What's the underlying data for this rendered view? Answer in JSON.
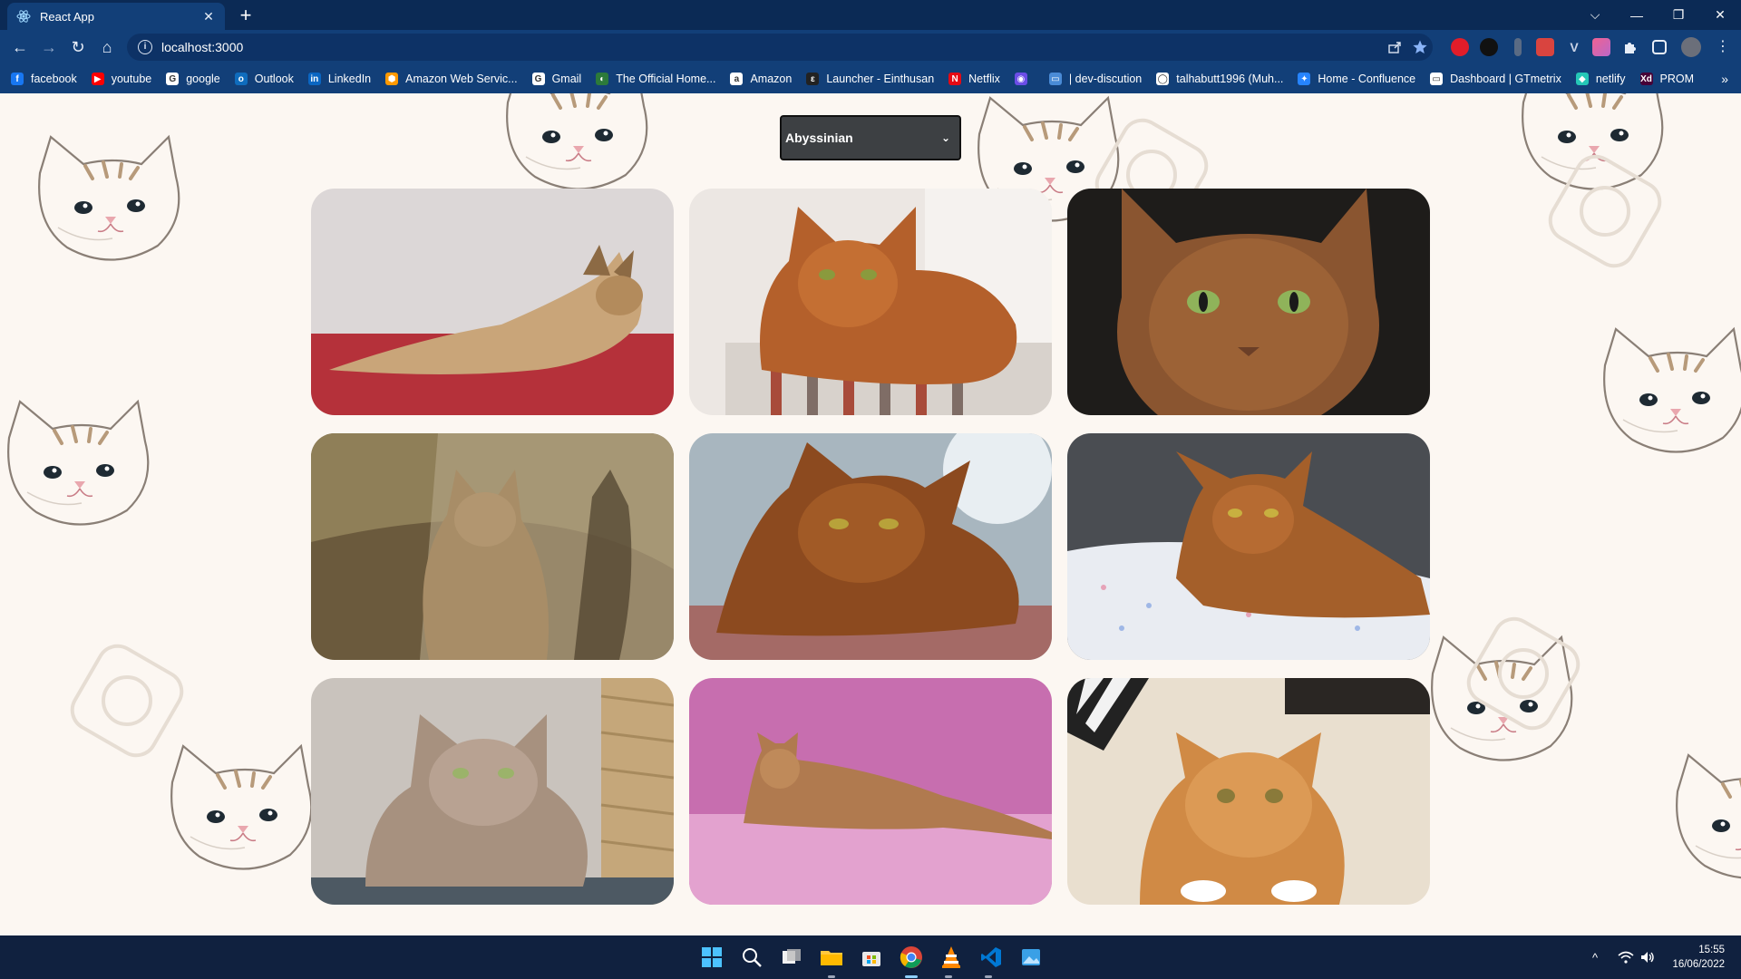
{
  "browser": {
    "tab": {
      "title": "React App",
      "favicon": "react-icon",
      "close_glyph": "✕"
    },
    "new_tab_glyph": "+",
    "window_controls": {
      "list": "⌵",
      "minimize": "—",
      "restore": "❐",
      "close": "✕"
    },
    "toolbar": {
      "back": "←",
      "forward": "→",
      "reload": "↻",
      "home": "⌂",
      "url": "localhost:3000",
      "info_glyph": "i"
    },
    "bookmarks": [
      {
        "label": "facebook",
        "color": "#1877f2",
        "glyph": "f"
      },
      {
        "label": "youtube",
        "color": "#ff0000",
        "glyph": "▶"
      },
      {
        "label": "google",
        "color": "#ffffff",
        "glyph": "G"
      },
      {
        "label": "Outlook",
        "color": "#0f6cbd",
        "glyph": "o"
      },
      {
        "label": "LinkedIn",
        "color": "#0a66c2",
        "glyph": "in"
      },
      {
        "label": "Amazon Web Servic...",
        "color": "#ff9900",
        "glyph": "⬢"
      },
      {
        "label": "Gmail",
        "color": "#ffffff",
        "glyph": "G"
      },
      {
        "label": "The Official Home...",
        "color": "#2c7a3a",
        "glyph": "◐"
      },
      {
        "label": "Amazon",
        "color": "#ffffff",
        "glyph": "a"
      },
      {
        "label": "Launcher - Einthusan",
        "color": "#222222",
        "glyph": "ε"
      },
      {
        "label": "Netflix",
        "color": "#e50914",
        "glyph": "N"
      },
      {
        "label": "",
        "color": "#6b4de6",
        "glyph": "◉"
      },
      {
        "label": "| dev-discution",
        "color": "#4a8bd6",
        "glyph": "▭"
      },
      {
        "label": "talhabutt1996 (Muh...",
        "color": "#ffffff",
        "glyph": "◯"
      },
      {
        "label": "Home - Confluence",
        "color": "#2684ff",
        "glyph": "✦"
      },
      {
        "label": "Dashboard | GTmetrix",
        "color": "#ffffff",
        "glyph": "▭"
      },
      {
        "label": "netlify",
        "color": "#25c7b7",
        "glyph": "◆"
      },
      {
        "label": "PROM",
        "color": "#470137",
        "glyph": "Xd"
      }
    ],
    "bookmarks_more": "»"
  },
  "page": {
    "breed_select": {
      "value": "Abyssinian",
      "chevron": "⌄"
    },
    "cat_photos": [
      {
        "name": "cat-photo-1"
      },
      {
        "name": "cat-photo-2"
      },
      {
        "name": "cat-photo-3"
      },
      {
        "name": "cat-photo-4"
      },
      {
        "name": "cat-photo-5"
      },
      {
        "name": "cat-photo-6"
      },
      {
        "name": "cat-photo-7"
      },
      {
        "name": "cat-photo-8"
      },
      {
        "name": "cat-photo-9"
      }
    ]
  },
  "taskbar": {
    "apps": [
      "windows-start-icon",
      "search-icon",
      "task-view-icon",
      "file-explorer-icon",
      "store-icon",
      "chrome-icon",
      "vlc-icon",
      "vscode-icon",
      "photos-icon"
    ],
    "tray": {
      "chevron": "^",
      "wifi": "wifi-icon",
      "volume": "volume-icon"
    },
    "clock": {
      "time": "15:55",
      "date": "16/06/2022"
    }
  }
}
